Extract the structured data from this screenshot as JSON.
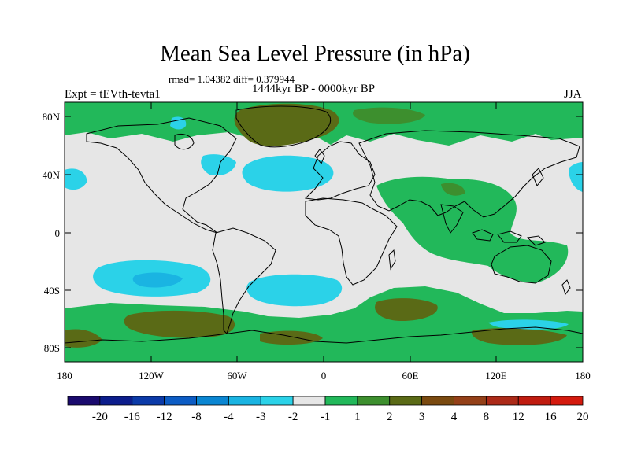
{
  "title": "Mean Sea Level Pressure (in hPa)",
  "stats": "rmsd= 1.04382 diff= 0.379944",
  "expt": "Expt = tEVth-tevta1",
  "period": "1444kyr BP - 0000kyr BP",
  "season": "JJA",
  "lat_ticks": [
    "80N",
    "40N",
    "0",
    "40S",
    "80S"
  ],
  "lon_ticks": [
    "180",
    "120W",
    "60W",
    "0",
    "60E",
    "120E",
    "180"
  ],
  "colorbar": {
    "labels": [
      "-20",
      "-16",
      "-12",
      "-8",
      "-4",
      "-3",
      "-2",
      "-1",
      "1",
      "2",
      "3",
      "4",
      "8",
      "12",
      "16",
      "20"
    ],
    "colors": [
      "#1a0a6e",
      "#0c1d8c",
      "#0b3aa8",
      "#0c5cc4",
      "#0a86d2",
      "#1ab4e2",
      "#2bd2e8",
      "#e6e6e6",
      "#22b85a",
      "#3d8f2e",
      "#5a6a16",
      "#7a4a10",
      "#944018",
      "#ac2a18",
      "#c01c10",
      "#d41a0e"
    ]
  },
  "colors": {
    "zero": "#e6e6e6",
    "pos1": "#22b85a",
    "pos2": "#3d8f2e",
    "pos3": "#5a6a16",
    "neg1": "#2bd2e8",
    "neg2": "#1ab4e2",
    "coast": "#000000"
  }
}
